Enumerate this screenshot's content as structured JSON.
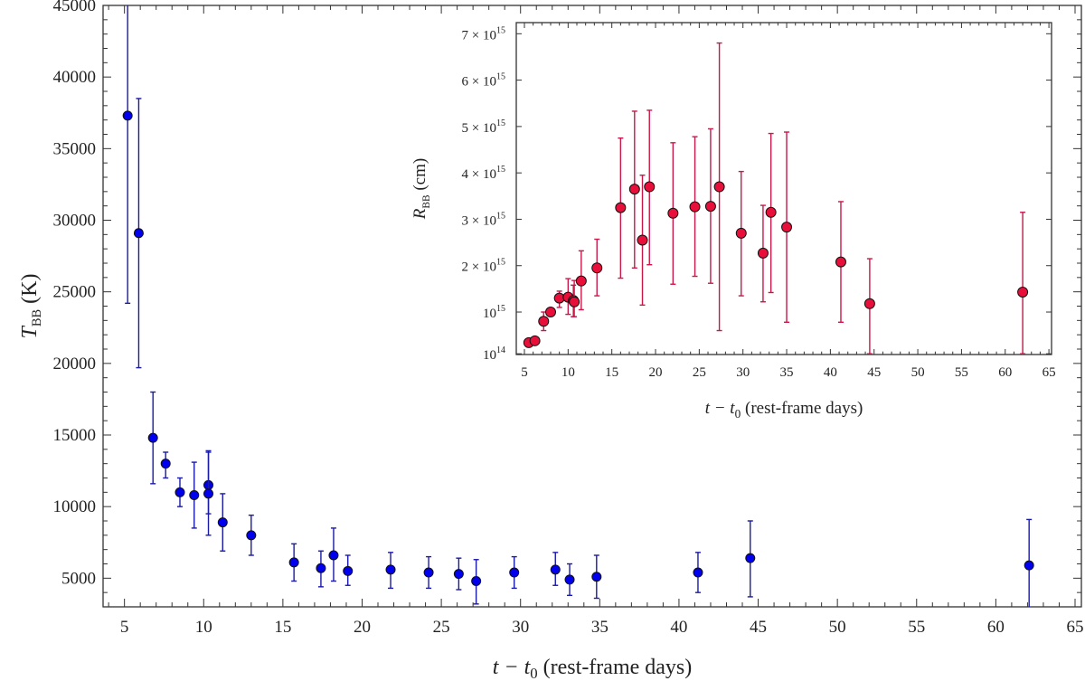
{
  "chart_data": [
    {
      "type": "scatter",
      "title": "",
      "xlabel": "t − t0 (rest-frame days)",
      "ylabel": "T_BB (K)",
      "xlabel_parts": {
        "a": "t − t",
        "sub": "0",
        "b": " (rest-frame days)"
      },
      "ylabel_parts": {
        "a": "T",
        "sub": "BB",
        "b": " (K)"
      },
      "xlim": [
        3.65,
        65.4
      ],
      "ylim": [
        3000,
        45000
      ],
      "xticks": [
        5,
        10,
        15,
        20,
        25,
        30,
        35,
        40,
        45,
        50,
        55,
        60,
        65
      ],
      "yticks": [
        5000,
        10000,
        15000,
        20000,
        25000,
        30000,
        35000,
        40000,
        45000
      ],
      "xtick_labels": [
        "5",
        "10",
        "15",
        "20",
        "25",
        "30",
        "35",
        "40",
        "45",
        "50",
        "55",
        "60",
        "65"
      ],
      "ytick_labels": [
        "5000",
        "10000",
        "15000",
        "20000",
        "25000",
        "30000",
        "35000",
        "40000",
        "45000"
      ],
      "color": "#0000ee",
      "errcolor": "#1a1aa8",
      "series": [
        {
          "name": "T_BB",
          "points": [
            {
              "x": 5.2,
              "y": 37300,
              "lo": 24200,
              "hi": 47000
            },
            {
              "x": 5.9,
              "y": 29100,
              "lo": 19700,
              "hi": 38500
            },
            {
              "x": 6.8,
              "y": 14800,
              "lo": 11600,
              "hi": 18000
            },
            {
              "x": 7.6,
              "y": 13000,
              "lo": 12000,
              "hi": 13800
            },
            {
              "x": 8.5,
              "y": 11000,
              "lo": 10000,
              "hi": 12000
            },
            {
              "x": 9.4,
              "y": 10800,
              "lo": 8500,
              "hi": 13100
            },
            {
              "x": 10.3,
              "y": 11500,
              "lo": 9500,
              "hi": 13900
            },
            {
              "x": 10.3,
              "y": 10900,
              "lo": 8000,
              "hi": 13800
            },
            {
              "x": 11.2,
              "y": 8900,
              "lo": 6900,
              "hi": 10900
            },
            {
              "x": 13.0,
              "y": 8000,
              "lo": 6600,
              "hi": 9400
            },
            {
              "x": 15.7,
              "y": 6100,
              "lo": 4800,
              "hi": 7400
            },
            {
              "x": 17.4,
              "y": 5700,
              "lo": 4400,
              "hi": 6900
            },
            {
              "x": 18.2,
              "y": 6600,
              "lo": 4800,
              "hi": 8500
            },
            {
              "x": 19.1,
              "y": 5500,
              "lo": 4500,
              "hi": 6600
            },
            {
              "x": 21.8,
              "y": 5600,
              "lo": 4300,
              "hi": 6800
            },
            {
              "x": 24.2,
              "y": 5400,
              "lo": 4300,
              "hi": 6500
            },
            {
              "x": 26.1,
              "y": 5300,
              "lo": 4200,
              "hi": 6400
            },
            {
              "x": 27.2,
              "y": 4800,
              "lo": 3200,
              "hi": 6300
            },
            {
              "x": 29.6,
              "y": 5400,
              "lo": 4300,
              "hi": 6500
            },
            {
              "x": 32.2,
              "y": 5600,
              "lo": 4500,
              "hi": 6800
            },
            {
              "x": 33.1,
              "y": 4900,
              "lo": 3800,
              "hi": 6000
            },
            {
              "x": 34.8,
              "y": 5100,
              "lo": 3600,
              "hi": 6600
            },
            {
              "x": 41.2,
              "y": 5400,
              "lo": 4000,
              "hi": 6800
            },
            {
              "x": 44.5,
              "y": 6400,
              "lo": 3700,
              "hi": 9000
            },
            {
              "x": 62.1,
              "y": 5900,
              "lo": 2800,
              "hi": 9100
            }
          ]
        }
      ]
    },
    {
      "type": "scatter",
      "title": "",
      "xlabel": "t − t0 (rest-frame days)",
      "ylabel": "R_BB (cm)",
      "xlabel_parts": {
        "a": "t − t",
        "sub": "0",
        "b": " (rest-frame days)"
      },
      "ylabel_parts": {
        "a": "R",
        "sub": "BB",
        "b": " (cm)"
      },
      "y_unit": "1e15 cm",
      "xlim": [
        4.07,
        65.3
      ],
      "ylim": [
        0.084,
        7.24
      ],
      "xticks": [
        5,
        10,
        15,
        20,
        25,
        30,
        35,
        40,
        45,
        50,
        55,
        60,
        65
      ],
      "xtick_labels": [
        "5",
        "10",
        "15",
        "20",
        "25",
        "30",
        "35",
        "40",
        "45",
        "50",
        "55",
        "60",
        "65"
      ],
      "yticks": [
        0.1,
        1,
        2,
        3,
        4,
        5,
        6,
        7
      ],
      "ytick_labels": [
        {
          "m": "",
          "e": "14"
        },
        {
          "m": "",
          "e": "15"
        },
        {
          "m": "2 × ",
          "e": "15"
        },
        {
          "m": "3 × ",
          "e": "15"
        },
        {
          "m": "4 × ",
          "e": "15"
        },
        {
          "m": "5 × ",
          "e": "15"
        },
        {
          "m": "6 × ",
          "e": "15"
        },
        {
          "m": "7 × ",
          "e": "15"
        }
      ],
      "ytick_base": "10",
      "color": "#e8103a",
      "errcolor": "#c8184a",
      "series": [
        {
          "name": "R_BB",
          "points": [
            {
              "x": 5.5,
              "y": 0.34,
              "lo": 0.34,
              "hi": 0.34
            },
            {
              "x": 6.2,
              "y": 0.38,
              "lo": 0.38,
              "hi": 0.38
            },
            {
              "x": 7.2,
              "y": 0.8,
              "lo": 0.6,
              "hi": 1.0
            },
            {
              "x": 8.0,
              "y": 1.0,
              "lo": 1.0,
              "hi": 1.0
            },
            {
              "x": 9.0,
              "y": 1.3,
              "lo": 1.1,
              "hi": 1.45
            },
            {
              "x": 10.0,
              "y": 1.32,
              "lo": 0.95,
              "hi": 1.72
            },
            {
              "x": 10.6,
              "y": 1.25,
              "lo": 0.9,
              "hi": 1.58
            },
            {
              "x": 10.7,
              "y": 1.22,
              "lo": 0.9,
              "hi": 1.68
            },
            {
              "x": 11.5,
              "y": 1.67,
              "lo": 1.05,
              "hi": 2.32
            },
            {
              "x": 13.3,
              "y": 1.95,
              "lo": 1.35,
              "hi": 2.57
            },
            {
              "x": 16.0,
              "y": 3.25,
              "lo": 1.73,
              "hi": 4.75
            },
            {
              "x": 17.6,
              "y": 3.65,
              "lo": 1.95,
              "hi": 5.33
            },
            {
              "x": 18.5,
              "y": 2.55,
              "lo": 1.15,
              "hi": 3.95
            },
            {
              "x": 19.3,
              "y": 3.7,
              "lo": 2.02,
              "hi": 5.35
            },
            {
              "x": 22.0,
              "y": 3.13,
              "lo": 1.6,
              "hi": 4.65
            },
            {
              "x": 24.5,
              "y": 3.27,
              "lo": 1.77,
              "hi": 4.78
            },
            {
              "x": 26.3,
              "y": 3.28,
              "lo": 1.62,
              "hi": 4.95
            },
            {
              "x": 27.3,
              "y": 3.7,
              "lo": 0.6,
              "hi": 6.8
            },
            {
              "x": 29.8,
              "y": 2.7,
              "lo": 1.35,
              "hi": 4.03
            },
            {
              "x": 32.3,
              "y": 2.27,
              "lo": 1.22,
              "hi": 3.3
            },
            {
              "x": 33.2,
              "y": 3.15,
              "lo": 1.42,
              "hi": 4.85
            },
            {
              "x": 35.0,
              "y": 2.83,
              "lo": 0.78,
              "hi": 4.88
            },
            {
              "x": 41.2,
              "y": 2.08,
              "lo": 0.78,
              "hi": 3.38
            },
            {
              "x": 44.5,
              "y": 1.18,
              "lo": 0.1,
              "hi": 2.15
            },
            {
              "x": 62.0,
              "y": 1.43,
              "lo": 0.1,
              "hi": 3.15
            }
          ]
        }
      ]
    }
  ]
}
